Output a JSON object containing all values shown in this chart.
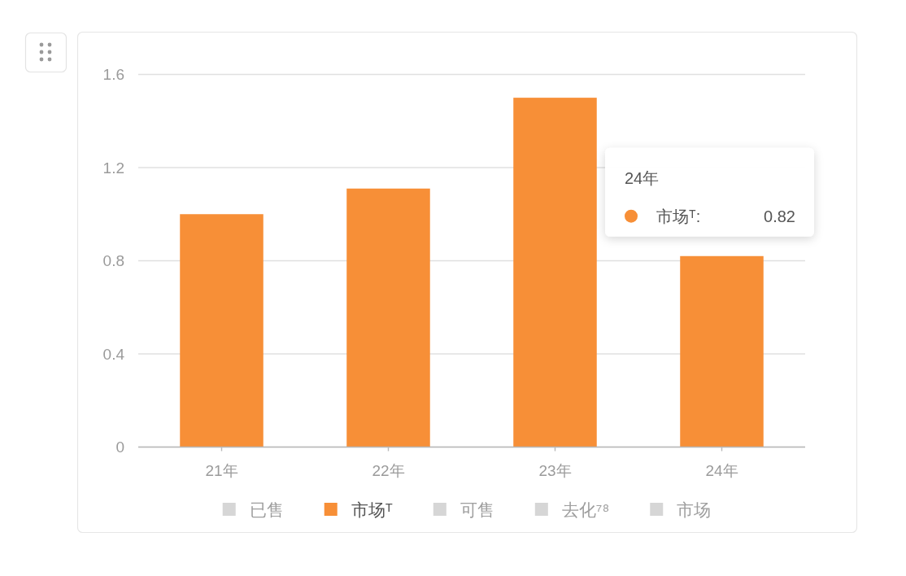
{
  "chart_data": {
    "type": "bar",
    "categories": [
      "21年",
      "22年",
      "23年",
      "24年"
    ],
    "series": [
      {
        "name": "已售",
        "color": "#d6d6d6",
        "values": [
          null,
          null,
          null,
          null
        ]
      },
      {
        "name": "市场ᵀ",
        "color": "#f78f37",
        "values": [
          1.0,
          1.11,
          1.5,
          0.82
        ]
      },
      {
        "name": "可售",
        "color": "#d6d6d6",
        "values": [
          null,
          null,
          null,
          null
        ]
      },
      {
        "name": "去化⁷⁸",
        "color": "#d6d6d6",
        "values": [
          null,
          null,
          null,
          null
        ]
      },
      {
        "name": "市场",
        "color": "#d6d6d6",
        "values": [
          null,
          null,
          null,
          null
        ]
      }
    ],
    "ylim": [
      0,
      1.6
    ],
    "yticks": [
      0,
      0.4,
      0.8,
      1.2,
      1.6
    ],
    "grid": "y",
    "legend": "bottom",
    "annotations": [
      "24年",
      "市场ᵀ: 0.82"
    ]
  }
}
